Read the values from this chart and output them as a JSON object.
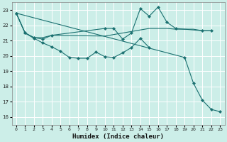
{
  "xlabel": "Humidex (Indice chaleur)",
  "bg_color": "#cceee8",
  "grid_color": "#ffffff",
  "line_color": "#1a7070",
  "xlim": [
    -0.5,
    23.5
  ],
  "ylim": [
    15.5,
    23.5
  ],
  "yticks": [
    16,
    17,
    18,
    19,
    20,
    21,
    22,
    23
  ],
  "xticks": [
    0,
    1,
    2,
    3,
    4,
    5,
    6,
    7,
    8,
    9,
    10,
    11,
    12,
    13,
    14,
    15,
    16,
    17,
    18,
    19,
    20,
    21,
    22,
    23
  ],
  "lines": [
    {
      "x": [
        0,
        1,
        2,
        3,
        4,
        10,
        15,
        16,
        17,
        18,
        19,
        20,
        21,
        22
      ],
      "y": [
        22.8,
        21.5,
        21.2,
        21.2,
        21.35,
        21.3,
        21.8,
        21.8,
        21.8,
        21.75,
        21.75,
        21.75,
        21.65,
        21.65
      ],
      "has_markers": false
    },
    {
      "x": [
        0,
        1,
        2,
        3,
        4,
        10,
        11,
        12,
        13,
        14,
        15,
        16,
        17,
        18,
        21,
        22
      ],
      "y": [
        22.8,
        21.5,
        21.2,
        21.1,
        21.35,
        21.8,
        21.8,
        21.1,
        21.5,
        23.1,
        22.6,
        23.2,
        22.2,
        21.8,
        21.65,
        21.65
      ],
      "has_markers": true
    },
    {
      "x": [
        0,
        1,
        2,
        3,
        4,
        5,
        6,
        7,
        8,
        9,
        10,
        11,
        12,
        13,
        14,
        15
      ],
      "y": [
        22.8,
        21.5,
        21.15,
        20.85,
        20.6,
        20.3,
        19.9,
        19.85,
        19.85,
        20.25,
        19.95,
        19.9,
        20.2,
        20.55,
        21.15,
        20.55
      ],
      "has_markers": true
    },
    {
      "x": [
        0,
        19,
        20,
        21,
        22,
        23
      ],
      "y": [
        22.8,
        19.9,
        18.2,
        17.1,
        16.5,
        16.35
      ],
      "has_markers": true
    }
  ]
}
